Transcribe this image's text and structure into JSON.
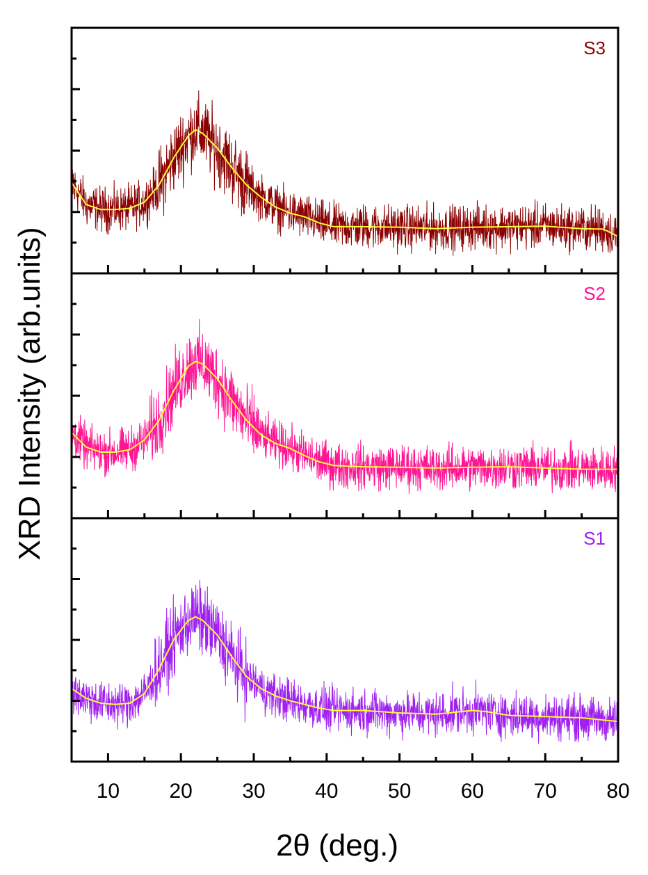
{
  "chart_data": {
    "type": "line",
    "xlabel": "2θ (deg.)",
    "ylabel": "XRD Intensity (arb.units)",
    "xlim": [
      5,
      80
    ],
    "x_ticks": [
      10,
      20,
      30,
      40,
      50,
      60,
      70,
      80
    ],
    "y_ticks_shown": false,
    "noise_color_note": "raw data drawn as dense noisy trace; smoothed fit in yellow",
    "fit_color": "#FFFF33",
    "panels": [
      {
        "label": "S3",
        "color": "#8B0000",
        "ylim": [
          0,
          1
        ],
        "noise_amplitude": 0.16,
        "smooth": {
          "x": [
            5,
            7,
            9,
            11,
            13,
            15,
            17,
            19,
            21,
            22,
            23,
            25,
            27,
            29,
            31,
            33,
            35,
            37,
            39,
            41,
            45,
            50,
            55,
            60,
            65,
            70,
            75,
            78,
            80
          ],
          "y": [
            0.37,
            0.28,
            0.26,
            0.26,
            0.265,
            0.29,
            0.36,
            0.47,
            0.56,
            0.585,
            0.57,
            0.51,
            0.43,
            0.36,
            0.31,
            0.27,
            0.245,
            0.23,
            0.205,
            0.19,
            0.19,
            0.188,
            0.182,
            0.188,
            0.19,
            0.192,
            0.182,
            0.18,
            0.15
          ]
        }
      },
      {
        "label": "S2",
        "color": "#FF1493",
        "ylim": [
          0,
          1
        ],
        "noise_amplitude": 0.16,
        "smooth": {
          "x": [
            5,
            7,
            9,
            11,
            13,
            15,
            17,
            19,
            21,
            22,
            23,
            25,
            27,
            29,
            31,
            33,
            35,
            37,
            39,
            41,
            45,
            50,
            55,
            60,
            65,
            70,
            75,
            80
          ],
          "y": [
            0.35,
            0.29,
            0.27,
            0.27,
            0.28,
            0.32,
            0.4,
            0.52,
            0.62,
            0.64,
            0.63,
            0.57,
            0.48,
            0.4,
            0.34,
            0.305,
            0.285,
            0.255,
            0.23,
            0.215,
            0.21,
            0.208,
            0.205,
            0.208,
            0.21,
            0.205,
            0.2,
            0.2
          ]
        }
      },
      {
        "label": "S1",
        "color": "#A020F0",
        "ylim": [
          0,
          1
        ],
        "noise_amplitude": 0.16,
        "smooth": {
          "x": [
            5,
            7,
            9,
            11,
            13,
            15,
            17,
            19,
            21,
            22,
            23,
            25,
            27,
            29,
            31,
            33,
            35,
            37,
            39,
            41,
            45,
            50,
            55,
            60,
            62,
            65,
            70,
            75,
            80
          ],
          "y": [
            0.3,
            0.26,
            0.24,
            0.235,
            0.24,
            0.28,
            0.38,
            0.5,
            0.58,
            0.595,
            0.58,
            0.52,
            0.43,
            0.35,
            0.3,
            0.27,
            0.25,
            0.235,
            0.22,
            0.21,
            0.21,
            0.2,
            0.195,
            0.21,
            0.205,
            0.19,
            0.185,
            0.18,
            0.165
          ]
        }
      }
    ]
  }
}
